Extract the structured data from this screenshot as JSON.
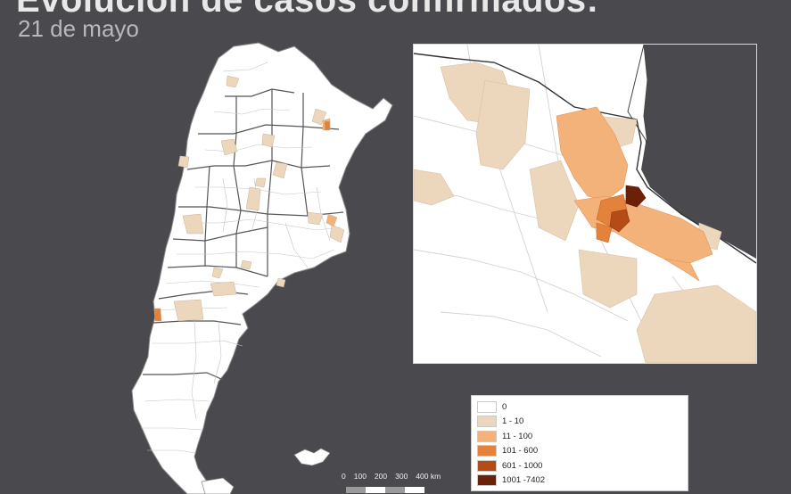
{
  "header": {
    "title": "Evolución de casos confirmados:",
    "subtitle": "21 de mayo"
  },
  "legend": {
    "items": [
      {
        "label": "0",
        "color": "#ffffff"
      },
      {
        "label": "1 - 10",
        "color": "#ecd6bc"
      },
      {
        "label": "11 - 100",
        "color": "#f2b27a"
      },
      {
        "label": "101 - 600",
        "color": "#e4823b"
      },
      {
        "label": "601 - 1000",
        "color": "#b54c18"
      },
      {
        "label": "1001 -7402",
        "color": "#6b2007"
      }
    ]
  },
  "scale": {
    "labels": [
      "0",
      "100",
      "200",
      "300",
      "400 km"
    ]
  },
  "colors": {
    "background": "#4a4a4e",
    "land": "#ffffff",
    "border": "#9a9a9a"
  }
}
